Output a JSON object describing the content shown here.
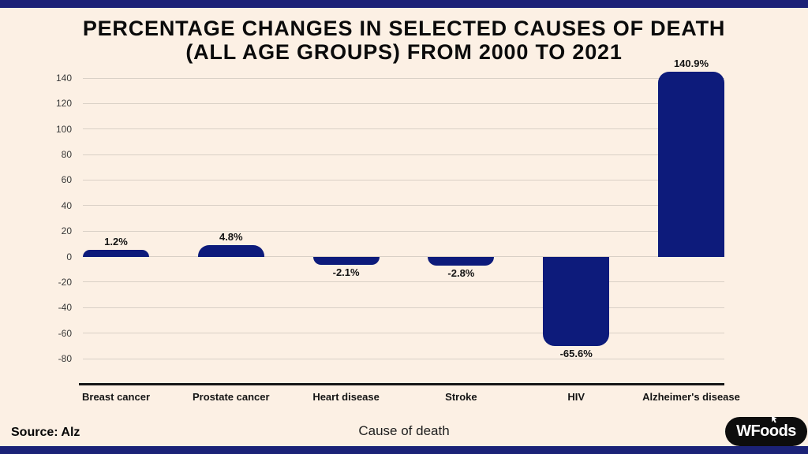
{
  "title": {
    "line1": "PERCENTAGE CHANGES IN SELECTED CAUSES OF DEATH",
    "line2": "(ALL AGE GROUPS) FROM 2000 TO 2021"
  },
  "source": {
    "label": "Source: Alz"
  },
  "footer": {
    "xlabel": "Cause of death"
  },
  "logo": {
    "text_before": "WFo",
    "text_o": "o",
    "text_after": "ds",
    "cursor_icon": "cursor-icon"
  },
  "colors": {
    "background": "#fcf0e4",
    "border_strip": "#1b2277",
    "bar": "#0d1b7b",
    "gridline": "#d9d0c6",
    "axis_line": "#161616",
    "title_text": "#0b0b0b",
    "tick_text": "#3a3a3a",
    "logo_bg": "#0d0d0d",
    "logo_text": "#ffffff"
  },
  "chart_data": {
    "type": "bar",
    "title": "PERCENTAGE CHANGES IN SELECTED CAUSES OF DEATH (ALL AGE GROUPS) FROM 2000 TO 2021",
    "categories": [
      "Breast cancer",
      "Prostate cancer",
      "Heart disease",
      "Stroke",
      "HIV",
      "Alzheimer's disease"
    ],
    "values": [
      1.2,
      4.8,
      -2.1,
      -2.8,
      -65.6,
      140.9
    ],
    "value_labels": [
      "1.2%",
      "4.8%",
      "-2.1%",
      "-2.8%",
      "-65.6%",
      "140.9%"
    ],
    "xlabel": "Cause of death",
    "ylabel": "",
    "ylim": [
      -80,
      140
    ],
    "yticks": [
      140,
      120,
      100,
      80,
      60,
      40,
      20,
      0,
      -20,
      -40,
      -60,
      -80
    ],
    "grid": true,
    "legend": false,
    "bar_color": "#0d1b7b"
  }
}
